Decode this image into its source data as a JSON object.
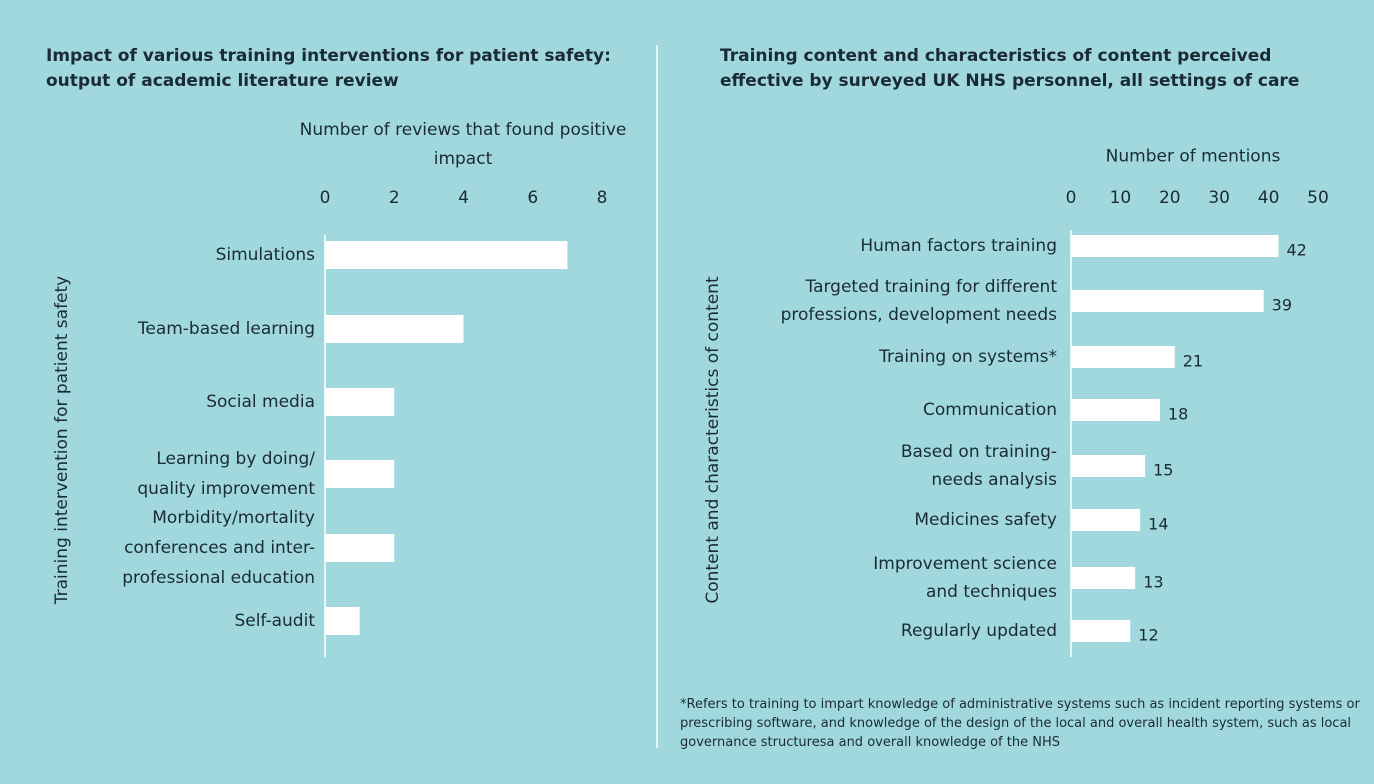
{
  "chart_data": [
    {
      "type": "bar",
      "orientation": "horizontal",
      "title": "Impact of various training interventions for patient safety: output of academic literature review",
      "x_label": "Number of reviews that found positive impact",
      "y_label": "Training intervention for patient safety",
      "categories": [
        "Simulations",
        "Team-based learning",
        "Social media",
        "Learning by doing/\nquality improvement",
        "Morbidity/mortality\nconferences and inter-\nprofessional education",
        "Self-audit"
      ],
      "values": [
        7,
        4,
        2,
        2,
        2,
        1
      ],
      "color": "#ffffff",
      "xlim": [
        0,
        8
      ],
      "xticks": [
        0,
        2,
        4,
        6,
        8
      ]
    },
    {
      "type": "bar",
      "orientation": "horizontal",
      "title": "Training content and characteristics of content perceived effective by surveyed UK NHS personnel, all settings of care",
      "x_label": "Number of mentions",
      "y_label": "Content and characteristics of content",
      "categories": [
        "Human factors training",
        "Targeted training for different\nprofessions, development needs",
        "Training on systems*",
        "Communication",
        "Based on training-\nneeds analysis",
        "Medicines safety",
        "Improvement science\nand techniques",
        "Regularly updated"
      ],
      "values": [
        42,
        39,
        21,
        18,
        15,
        14,
        13,
        12
      ],
      "color": "#ffffff",
      "xlim": [
        0,
        50
      ],
      "xticks": [
        0,
        10,
        20,
        30,
        40,
        50
      ],
      "footnote": "*Refers to training to impart knowledge of administrative systems such as incident reporting systems or prescribing software, and knowledge of the design of the local and overall health system, such as local governance structuresa and overall knowledge of the NHS"
    }
  ]
}
